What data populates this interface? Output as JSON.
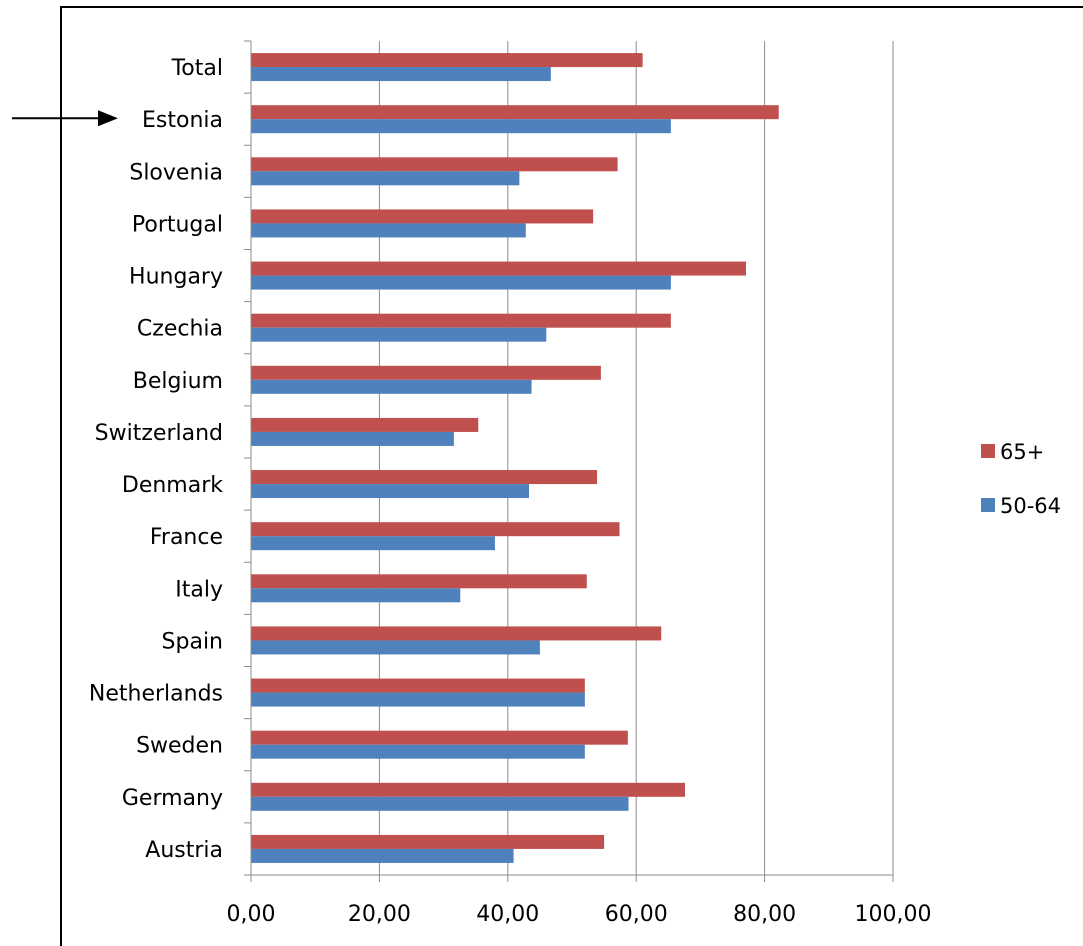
{
  "chart_data": {
    "type": "bar",
    "orientation": "horizontal",
    "categories": [
      "Total",
      "Estonia",
      "Slovenia",
      "Portugal",
      "Hungary",
      "Czechia",
      "Belgium",
      "Switzerland",
      "Denmark",
      "France",
      "Italy",
      "Spain",
      "Netherlands",
      "Sweden",
      "Germany",
      "Austria"
    ],
    "series": [
      {
        "name": "65+",
        "color": "#c0504d",
        "values": [
          61.0,
          82.2,
          57.1,
          53.3,
          77.1,
          65.4,
          54.5,
          35.4,
          53.9,
          57.4,
          52.3,
          63.9,
          52.0,
          58.7,
          67.6,
          55.0
        ]
      },
      {
        "name": "50-64",
        "color": "#4f81bd",
        "values": [
          46.7,
          65.4,
          41.8,
          42.8,
          65.4,
          46.0,
          43.7,
          31.6,
          43.3,
          38.0,
          32.6,
          45.0,
          52.0,
          52.0,
          58.8,
          40.9
        ]
      }
    ],
    "xlim": [
      0,
      100
    ],
    "xticks": [
      "0,00",
      "20,00",
      "40,00",
      "60,00",
      "80,00",
      "100,00"
    ],
    "title": "",
    "xlabel": "",
    "ylabel": "",
    "grid": "vertical",
    "legend_position": "right",
    "highlighted_category": "Estonia"
  }
}
